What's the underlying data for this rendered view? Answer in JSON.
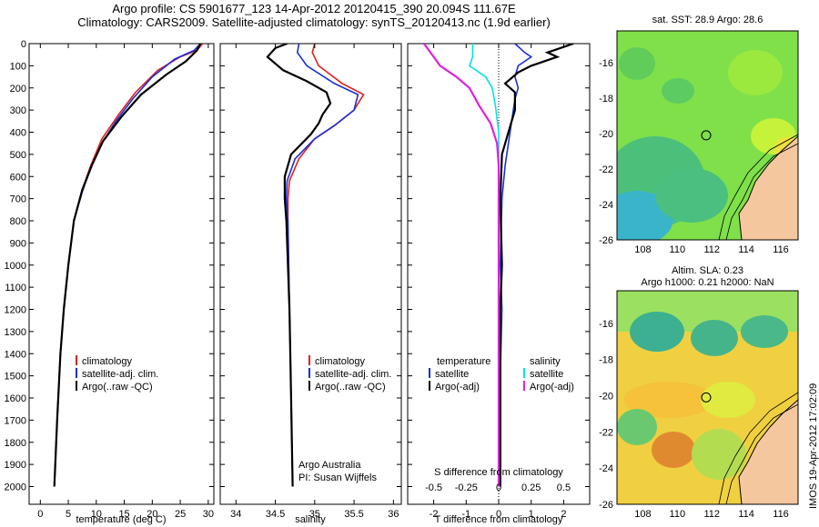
{
  "header": {
    "line1": "Argo profile: CS 5901677_123 14-Apr-2012 20120415_390 20.094S 111.67E",
    "line2": "Climatology: CARS2009. Satellite-adjusted climatology: synTS_20120413.nc (1.9d earlier)"
  },
  "depth_ticks": [
    "0",
    "100",
    "200",
    "300",
    "400",
    "500",
    "600",
    "700",
    "800",
    "900",
    "1000",
    "1100",
    "1200",
    "1300",
    "1400",
    "1500",
    "1600",
    "1700",
    "1800",
    "1900",
    "2000"
  ],
  "colors": {
    "climatology": "#e02020",
    "satellite": "#1a2ed8",
    "argo": "#000000",
    "salinity_sat": "#00e5e5",
    "salinity_argo": "#e020e0"
  },
  "chart_data": [
    {
      "type": "line",
      "name": "temperature",
      "xlabel": "temperature (deg C)",
      "ylabel": "depth",
      "xlim": [
        -2,
        31
      ],
      "ylim": [
        2080,
        0
      ],
      "x_ticks": [
        "0",
        "5",
        "10",
        "15",
        "20",
        "25",
        "30"
      ],
      "legend": [
        "climatology",
        "satellite-adj. clim.",
        "Argo(..raw -QC)"
      ],
      "series": [
        {
          "name": "climatology",
          "points": [
            [
              29,
              0
            ],
            [
              28,
              30
            ],
            [
              25,
              60
            ],
            [
              21,
              120
            ],
            [
              17,
              220
            ],
            [
              14,
              320
            ],
            [
              11,
              430
            ],
            [
              9,
              550
            ],
            [
              7.5,
              660
            ],
            [
              6,
              800
            ],
            [
              5,
              1000
            ],
            [
              4.2,
              1200
            ],
            [
              3.6,
              1400
            ],
            [
              3,
              1700
            ],
            [
              2.5,
              2000
            ]
          ]
        },
        {
          "name": "satellite-adj. clim.",
          "points": [
            [
              28.6,
              0
            ],
            [
              27.5,
              30
            ],
            [
              24,
              70
            ],
            [
              20,
              150
            ],
            [
              16.5,
              250
            ],
            [
              13.5,
              350
            ],
            [
              11,
              450
            ],
            [
              9,
              560
            ],
            [
              7.5,
              670
            ],
            [
              6,
              800
            ],
            [
              5,
              1000
            ],
            [
              4.2,
              1200
            ],
            [
              3.6,
              1400
            ],
            [
              3,
              1700
            ],
            [
              2.5,
              2000
            ]
          ]
        },
        {
          "name": "Argo(..raw -QC)",
          "points": [
            [
              28.6,
              0
            ],
            [
              28,
              30
            ],
            [
              26,
              80
            ],
            [
              22.5,
              140
            ],
            [
              18,
              230
            ],
            [
              14.5,
              330
            ],
            [
              11.2,
              440
            ],
            [
              9.2,
              550
            ],
            [
              7.5,
              660
            ],
            [
              6,
              800
            ],
            [
              5,
              1000
            ],
            [
              4.2,
              1200
            ],
            [
              3.6,
              1400
            ],
            [
              3,
              1700
            ],
            [
              2.5,
              2000
            ]
          ]
        }
      ]
    },
    {
      "type": "line",
      "name": "salinity",
      "xlabel": "salinity",
      "ylabel": "depth",
      "xlim": [
        33.8,
        36.1
      ],
      "ylim": [
        2080,
        0
      ],
      "x_ticks": [
        "34",
        "34.5",
        "35",
        "35.5",
        "36"
      ],
      "legend": [
        "climatology",
        "satellite-adj. clim.",
        "Argo(..raw -QC)"
      ],
      "annotation": [
        "Argo Australia",
        "PI: Susan Wijffels"
      ],
      "series": [
        {
          "name": "climatology",
          "points": [
            [
              35,
              0
            ],
            [
              34.97,
              40
            ],
            [
              35.05,
              100
            ],
            [
              35.35,
              180
            ],
            [
              35.62,
              230
            ],
            [
              35.5,
              300
            ],
            [
              35.25,
              370
            ],
            [
              35,
              430
            ],
            [
              34.8,
              520
            ],
            [
              34.68,
              620
            ],
            [
              34.66,
              700
            ],
            [
              34.66,
              800
            ],
            [
              34.68,
              1200
            ],
            [
              34.7,
              1600
            ],
            [
              34.72,
              2000
            ]
          ]
        },
        {
          "name": "satellite-adj. clim.",
          "points": [
            [
              34.8,
              0
            ],
            [
              34.78,
              40
            ],
            [
              34.9,
              100
            ],
            [
              35.25,
              180
            ],
            [
              35.55,
              230
            ],
            [
              35.5,
              300
            ],
            [
              35.25,
              370
            ],
            [
              35,
              430
            ],
            [
              34.75,
              520
            ],
            [
              34.65,
              620
            ],
            [
              34.64,
              700
            ],
            [
              34.66,
              800
            ],
            [
              34.68,
              1200
            ],
            [
              34.7,
              1600
            ],
            [
              34.72,
              2000
            ]
          ]
        },
        {
          "name": "Argo(..raw -QC)",
          "points": [
            [
              34.65,
              0
            ],
            [
              34.5,
              20
            ],
            [
              34.4,
              60
            ],
            [
              34.6,
              120
            ],
            [
              34.9,
              170
            ],
            [
              35.15,
              220
            ],
            [
              35.2,
              270
            ],
            [
              35.1,
              320
            ],
            [
              35.05,
              360
            ],
            [
              34.95,
              410
            ],
            [
              34.7,
              500
            ],
            [
              34.62,
              600
            ],
            [
              34.62,
              700
            ],
            [
              34.64,
              800
            ],
            [
              34.68,
              1200
            ],
            [
              34.7,
              1600
            ],
            [
              34.72,
              2000
            ]
          ]
        }
      ]
    },
    {
      "type": "line",
      "name": "difference",
      "xlabel": "T difference from climatology",
      "x2label": "S difference from climatology",
      "ylabel": "depth",
      "xlim": [
        -2.8,
        2.8
      ],
      "ylim": [
        2080,
        0
      ],
      "x_ticks": [
        "-2",
        "-1",
        "0",
        "1",
        "2"
      ],
      "x2_ticks": [
        "-0.5",
        "-0.25",
        "0",
        "0.25",
        "0.5"
      ],
      "legend_temperature_title": "temperature",
      "legend_temperature": [
        "satellite",
        "Argo(-adj)"
      ],
      "legend_salinity_title": "salinity",
      "legend_salinity": [
        "satellite",
        "Argo(-adj)"
      ],
      "series": [
        {
          "name": "temperature satellite",
          "points": [
            [
              0.5,
              0
            ],
            [
              0.8,
              40
            ],
            [
              1,
              60
            ],
            [
              0.6,
              100
            ],
            [
              0.5,
              150
            ],
            [
              0.6,
              200
            ],
            [
              0.5,
              250
            ],
            [
              0.4,
              350
            ],
            [
              0.3,
              450
            ],
            [
              0.2,
              550
            ],
            [
              0.1,
              700
            ],
            [
              0.05,
              1000
            ],
            [
              0.1,
              1200
            ],
            [
              0.05,
              1500
            ],
            [
              0.05,
              2000
            ]
          ]
        },
        {
          "name": "temperature Argo(-adj)",
          "points": [
            [
              2.3,
              0
            ],
            [
              1.5,
              40
            ],
            [
              1.8,
              60
            ],
            [
              1,
              100
            ],
            [
              0.6,
              130
            ],
            [
              0.2,
              180
            ],
            [
              0.5,
              220
            ],
            [
              0.5,
              300
            ],
            [
              0.3,
              400
            ],
            [
              0.1,
              500
            ],
            [
              0.05,
              700
            ],
            [
              0.1,
              1000
            ],
            [
              0.05,
              1200
            ],
            [
              0.05,
              1500
            ],
            [
              0.05,
              2000
            ]
          ]
        },
        {
          "name": "salinity satellite",
          "points": [
            [
              -0.8,
              0
            ],
            [
              -0.8,
              40
            ],
            [
              -0.8,
              60
            ],
            [
              -0.9,
              100
            ],
            [
              -0.4,
              150
            ],
            [
              -0.2,
              200
            ],
            [
              -0.1,
              280
            ],
            [
              0,
              400
            ],
            [
              0,
              500
            ],
            [
              0,
              700
            ],
            [
              0,
              1000
            ],
            [
              0,
              1500
            ],
            [
              0,
              2000
            ]
          ]
        },
        {
          "name": "salinity Argo(-adj)",
          "points": [
            [
              -2.3,
              0
            ],
            [
              -2,
              60
            ],
            [
              -1.8,
              100
            ],
            [
              -1.3,
              150
            ],
            [
              -0.9,
              200
            ],
            [
              -0.6,
              280
            ],
            [
              -0.25,
              360
            ],
            [
              -0.05,
              450
            ],
            [
              0,
              550
            ],
            [
              0,
              700
            ],
            [
              0,
              1000
            ],
            [
              0,
              1500
            ],
            [
              0,
              2000
            ]
          ]
        }
      ]
    },
    {
      "type": "heatmap",
      "name": "sst-map",
      "title": "sat. SST: 28.9  Argo: 28.6",
      "x_ticks": [
        "108",
        "110",
        "112",
        "114",
        "116"
      ],
      "y_ticks": [
        "-16",
        "-18",
        "-20",
        "-22",
        "-24",
        "-26"
      ],
      "xlim": [
        106.5,
        117
      ],
      "ylim": [
        -26,
        -14.2
      ],
      "argo_marker": [
        111.67,
        -20.094
      ]
    },
    {
      "type": "heatmap",
      "name": "sla-map",
      "title": "Altim. SLA: 0.23",
      "subtitle": "Argo h1000: 0.21  h2000: NaN",
      "x_ticks": [
        "108",
        "110",
        "112",
        "114",
        "116"
      ],
      "y_ticks": [
        "-16",
        "-18",
        "-20",
        "-22",
        "-24",
        "-26"
      ],
      "xlim": [
        106.5,
        117
      ],
      "ylim": [
        -26,
        -14.2
      ],
      "argo_marker": [
        111.67,
        -20.094
      ]
    }
  ],
  "credit": "IMOS 19-Apr-2012 17:02:09"
}
